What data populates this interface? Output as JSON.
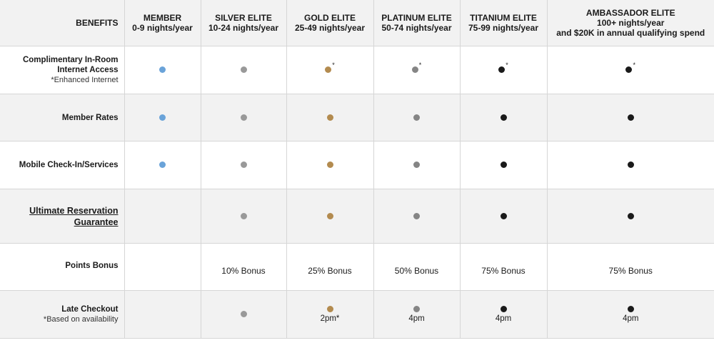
{
  "colors": {
    "member": "#6aa3d9",
    "silver": "#999999",
    "gold": "#b38b4f",
    "platinum": "#858585",
    "titanium": "#1a1a1a",
    "ambassador": "#1a1a1a"
  },
  "header": {
    "benefits": "BENEFITS",
    "tiers": [
      {
        "name": "MEMBER",
        "nights": "0-9 nights/year"
      },
      {
        "name": "SILVER ELITE",
        "nights": "10-24 nights/year"
      },
      {
        "name": "GOLD ELITE",
        "nights": "25-49 nights/year"
      },
      {
        "name": "PLATINUM ELITE",
        "nights": "50-74 nights/year"
      },
      {
        "name": "TITANIUM ELITE",
        "nights": "75-99 nights/year"
      },
      {
        "name": "AMBASSADOR ELITE",
        "nights": "100+ nights/year",
        "extra": "and $20K in annual qualifying spend"
      }
    ]
  },
  "rows": {
    "internet": {
      "label_1": "Complimentary In-Room",
      "label_2": "Internet Access",
      "note": "*Enhanced Internet",
      "star": "*"
    },
    "member_rates": {
      "label": "Member Rates"
    },
    "mobile": {
      "label": "Mobile Check-In/Services"
    },
    "guarantee": {
      "label_1": "Ultimate Reservation",
      "label_2": "Guarantee"
    },
    "points": {
      "label": "Points Bonus",
      "values": [
        "10% Bonus",
        "25% Bonus",
        "50% Bonus",
        "75% Bonus",
        "75% Bonus"
      ]
    },
    "late": {
      "label": "Late Checkout",
      "note": "*Based on availability",
      "values": [
        "2pm*",
        "4pm",
        "4pm",
        "4pm"
      ]
    }
  }
}
